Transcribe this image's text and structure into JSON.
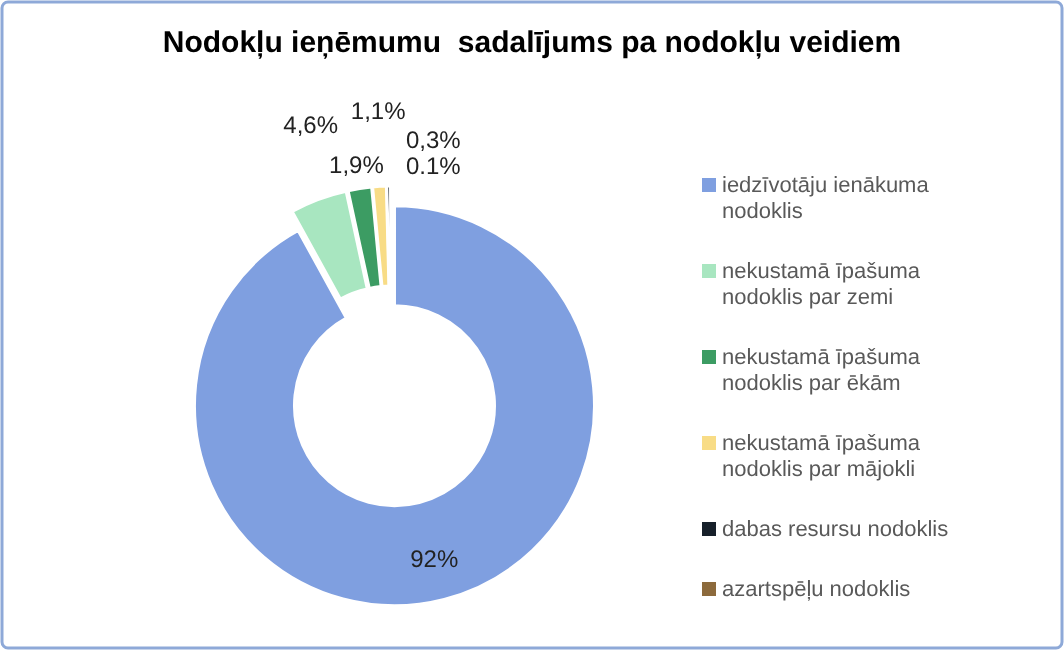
{
  "chart_data": {
    "type": "donut",
    "title": "Nodokļu ieņēmumu  sadalījums pa nodokļu veidiem",
    "categories": [
      "iedzīvotāju ienākuma nodoklis",
      "nekustamā īpašuma nodoklis par zemi",
      "nekustamā īpašuma nodoklis par ēkām",
      "nekustamā īpašuma nodoklis par mājokli",
      "dabas resursu nodoklis",
      "azartspēļu nodoklis"
    ],
    "values": [
      92,
      4.6,
      1.9,
      1.1,
      0.3,
      0.1
    ],
    "value_labels": [
      "92%",
      "4,6%",
      "1,9%",
      "1,1%",
      "0,3%",
      "0.1%"
    ],
    "colors": [
      "#7f9fe0",
      "#a8e6c0",
      "#3c9c63",
      "#f8dc86",
      "#17202a",
      "#8c6a3c"
    ],
    "legend": "right"
  }
}
